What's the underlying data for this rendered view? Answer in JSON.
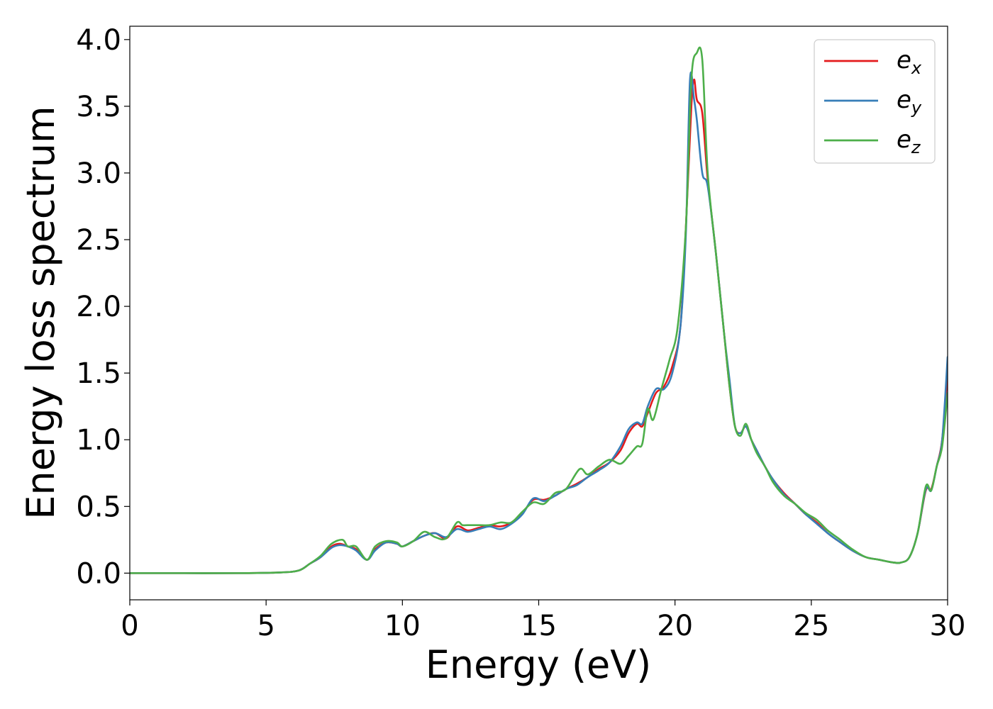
{
  "chart_data": {
    "type": "line",
    "xlabel": "Energy (eV)",
    "ylabel": "Energy loss spectrum",
    "xlim": [
      0,
      30
    ],
    "ylim": [
      -0.2,
      4.1
    ],
    "xticks": [
      0,
      5,
      10,
      15,
      20,
      25,
      30
    ],
    "yticks": [
      0.0,
      0.5,
      1.0,
      1.5,
      2.0,
      2.5,
      3.0,
      3.5,
      4.0
    ],
    "xtick_labels": [
      "0",
      "5",
      "10",
      "15",
      "20",
      "25",
      "30"
    ],
    "ytick_labels": [
      "0.0",
      "0.5",
      "1.0",
      "1.5",
      "2.0",
      "2.5",
      "3.0",
      "3.5",
      "4.0"
    ],
    "grid": false,
    "legend_position": "top-right",
    "series": [
      {
        "name": "e_x",
        "label_base": "e",
        "label_sub": "x",
        "color": "#e41a1c",
        "x": [
          0,
          2,
          4,
          5.5,
          6.2,
          6.6,
          7.0,
          7.4,
          7.7,
          8.0,
          8.3,
          8.7,
          9.0,
          9.4,
          9.8,
          10.0,
          10.4,
          10.8,
          11.2,
          11.6,
          12.0,
          12.4,
          12.8,
          13.2,
          13.6,
          14.0,
          14.4,
          14.8,
          15.2,
          15.6,
          16.0,
          16.4,
          16.8,
          17.2,
          17.6,
          18.0,
          18.3,
          18.6,
          18.8,
          19.0,
          19.3,
          19.6,
          19.9,
          20.2,
          20.4,
          20.6,
          20.7,
          20.8,
          21.0,
          21.2,
          21.5,
          21.8,
          22.0,
          22.2,
          22.4,
          22.6,
          22.8,
          23.0,
          23.3,
          23.6,
          24.0,
          24.4,
          24.8,
          25.2,
          25.6,
          26.0,
          26.5,
          27.0,
          27.5,
          28.0,
          28.3,
          28.6,
          28.9,
          29.2,
          29.4,
          29.6,
          29.8,
          30.0
        ],
        "values": [
          0.0,
          0.0,
          0.0,
          0.005,
          0.02,
          0.07,
          0.12,
          0.2,
          0.22,
          0.2,
          0.18,
          0.1,
          0.18,
          0.23,
          0.22,
          0.2,
          0.24,
          0.28,
          0.3,
          0.26,
          0.35,
          0.32,
          0.34,
          0.36,
          0.35,
          0.38,
          0.45,
          0.55,
          0.55,
          0.58,
          0.63,
          0.67,
          0.72,
          0.78,
          0.83,
          0.92,
          1.05,
          1.12,
          1.1,
          1.2,
          1.35,
          1.4,
          1.55,
          1.85,
          2.6,
          3.5,
          3.7,
          3.55,
          3.45,
          2.95,
          2.4,
          1.8,
          1.4,
          1.1,
          1.05,
          1.1,
          1.0,
          0.92,
          0.8,
          0.7,
          0.6,
          0.52,
          0.44,
          0.38,
          0.3,
          0.24,
          0.17,
          0.12,
          0.1,
          0.08,
          0.08,
          0.12,
          0.3,
          0.62,
          0.63,
          0.8,
          1.0,
          1.5
        ]
      },
      {
        "name": "e_y",
        "label_base": "e",
        "label_sub": "y",
        "color": "#377eb8",
        "x": [
          0,
          2,
          4,
          5.5,
          6.2,
          6.6,
          7.0,
          7.4,
          7.7,
          8.0,
          8.3,
          8.7,
          9.0,
          9.4,
          9.8,
          10.0,
          10.4,
          10.8,
          11.2,
          11.6,
          12.0,
          12.4,
          12.8,
          13.2,
          13.6,
          14.0,
          14.4,
          14.8,
          15.2,
          15.6,
          16.0,
          16.4,
          16.8,
          17.2,
          17.6,
          18.0,
          18.3,
          18.6,
          18.8,
          19.0,
          19.3,
          19.6,
          19.9,
          20.2,
          20.4,
          20.55,
          20.7,
          20.8,
          21.0,
          21.2,
          21.5,
          21.8,
          22.0,
          22.2,
          22.4,
          22.6,
          22.8,
          23.0,
          23.3,
          23.6,
          24.0,
          24.4,
          24.8,
          25.2,
          25.6,
          26.0,
          26.5,
          27.0,
          27.5,
          28.0,
          28.3,
          28.6,
          28.9,
          29.2,
          29.4,
          29.6,
          29.8,
          30.0
        ],
        "values": [
          0.0,
          0.0,
          0.0,
          0.005,
          0.02,
          0.07,
          0.12,
          0.19,
          0.21,
          0.2,
          0.17,
          0.1,
          0.17,
          0.23,
          0.22,
          0.2,
          0.24,
          0.28,
          0.3,
          0.27,
          0.33,
          0.31,
          0.33,
          0.35,
          0.33,
          0.37,
          0.44,
          0.56,
          0.54,
          0.58,
          0.63,
          0.66,
          0.72,
          0.77,
          0.83,
          0.95,
          1.08,
          1.13,
          1.12,
          1.25,
          1.38,
          1.38,
          1.5,
          1.85,
          2.55,
          3.7,
          3.55,
          3.4,
          3.0,
          2.9,
          2.4,
          1.8,
          1.45,
          1.1,
          1.05,
          1.1,
          1.0,
          0.92,
          0.8,
          0.7,
          0.59,
          0.52,
          0.44,
          0.37,
          0.3,
          0.24,
          0.17,
          0.12,
          0.1,
          0.08,
          0.08,
          0.12,
          0.3,
          0.63,
          0.62,
          0.8,
          1.0,
          1.62
        ]
      },
      {
        "name": "e_z",
        "label_base": "e",
        "label_sub": "z",
        "color": "#4daf4a",
        "x": [
          0,
          2,
          4,
          5.5,
          6.2,
          6.6,
          7.0,
          7.4,
          7.8,
          8.0,
          8.3,
          8.7,
          9.0,
          9.4,
          9.8,
          10.0,
          10.4,
          10.8,
          11.2,
          11.6,
          12.0,
          12.2,
          12.4,
          12.8,
          13.2,
          13.6,
          14.0,
          14.4,
          14.8,
          15.2,
          15.6,
          16.0,
          16.5,
          16.8,
          17.2,
          17.6,
          18.0,
          18.3,
          18.6,
          18.8,
          19.0,
          19.2,
          19.5,
          19.8,
          20.1,
          20.4,
          20.6,
          20.8,
          21.0,
          21.2,
          21.5,
          21.8,
          22.0,
          22.2,
          22.4,
          22.6,
          22.8,
          23.0,
          23.3,
          23.6,
          24.0,
          24.4,
          24.8,
          25.2,
          25.6,
          26.0,
          26.5,
          27.0,
          27.5,
          28.0,
          28.3,
          28.6,
          28.9,
          29.2,
          29.4,
          29.6,
          29.8,
          30.0
        ],
        "values": [
          0.0,
          0.0,
          0.0,
          0.005,
          0.02,
          0.07,
          0.13,
          0.22,
          0.25,
          0.2,
          0.2,
          0.1,
          0.2,
          0.24,
          0.23,
          0.2,
          0.24,
          0.31,
          0.27,
          0.26,
          0.38,
          0.36,
          0.36,
          0.36,
          0.36,
          0.38,
          0.38,
          0.46,
          0.53,
          0.52,
          0.6,
          0.63,
          0.78,
          0.74,
          0.8,
          0.85,
          0.82,
          0.88,
          0.95,
          0.97,
          1.23,
          1.15,
          1.38,
          1.6,
          1.85,
          2.6,
          3.7,
          3.9,
          3.85,
          3.0,
          2.4,
          1.8,
          1.4,
          1.1,
          1.03,
          1.12,
          1.0,
          0.9,
          0.8,
          0.68,
          0.58,
          0.52,
          0.45,
          0.4,
          0.32,
          0.26,
          0.18,
          0.12,
          0.1,
          0.08,
          0.08,
          0.12,
          0.3,
          0.65,
          0.62,
          0.8,
          0.95,
          1.35
        ]
      }
    ]
  }
}
